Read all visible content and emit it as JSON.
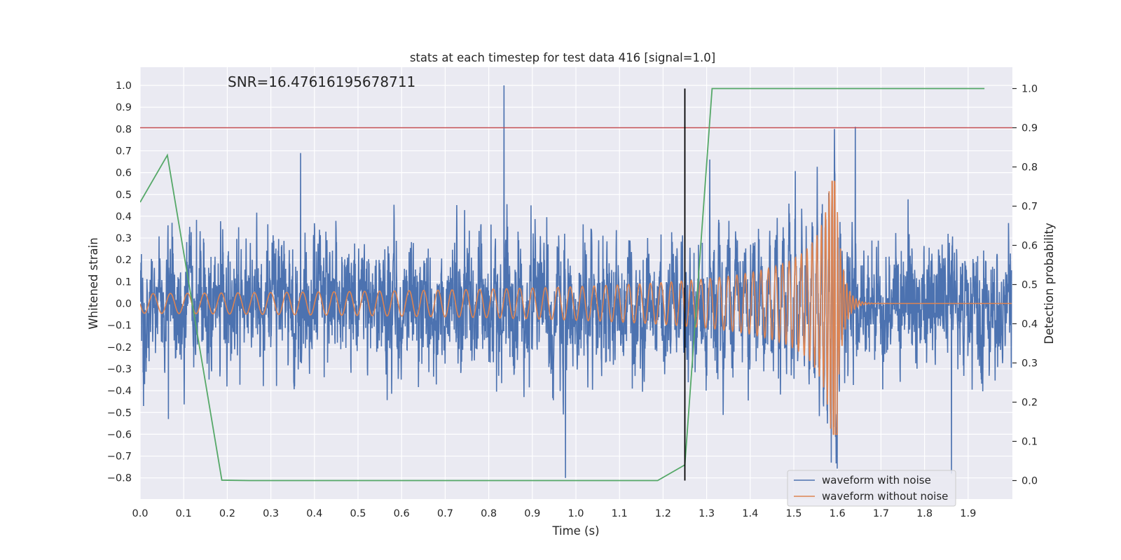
{
  "chart_data": {
    "type": "line",
    "title": "stats at each timestep for test data 416 [signal=1.0]",
    "xlabel": "Time (s)",
    "ylabel": "Whitened strain",
    "y2label": "Detection probability",
    "annotation": "SNR=16.47616195678711",
    "xlim": [
      0.0,
      2.0
    ],
    "ylim": [
      -0.89,
      1.09
    ],
    "y2lim": [
      -0.05,
      1.05
    ],
    "x_ticks": [
      "0.0",
      "0.1",
      "0.2",
      "0.3",
      "0.4",
      "0.5",
      "0.6",
      "0.7",
      "0.8",
      "0.9",
      "1.0",
      "1.1",
      "1.2",
      "1.3",
      "1.4",
      "1.5",
      "1.6",
      "1.7",
      "1.8",
      "1.9"
    ],
    "y_ticks": [
      "1.0",
      "0.9",
      "0.8",
      "0.7",
      "0.6",
      "0.5",
      "0.4",
      "0.3",
      "0.2",
      "0.1",
      "0.0",
      "−0.1",
      "−0.2",
      "−0.3",
      "−0.4",
      "−0.5",
      "−0.6",
      "−0.7",
      "−0.8"
    ],
    "y2_ticks": [
      "1.0",
      "0.9",
      "0.8",
      "0.7",
      "0.6",
      "0.5",
      "0.4",
      "0.3",
      "0.2",
      "0.1",
      "0.0"
    ],
    "threshold_y2": 0.9,
    "event_time": 1.25,
    "noise_series": {
      "name": "waveform with noise",
      "color": "#4c72b0",
      "sample_rate": 2048,
      "duration": 2.0,
      "std": 0.17,
      "clip": [
        -0.8,
        1.0
      ],
      "spikes": [
        [
          0.835,
          1.0
        ],
        [
          0.976,
          -0.8
        ],
        [
          1.641,
          0.81
        ],
        [
          1.862,
          -0.78
        ],
        [
          0.368,
          0.69
        ],
        [
          1.307,
          0.66
        ],
        [
          0.065,
          -0.53
        ],
        [
          1.586,
          -0.73
        ]
      ]
    },
    "clean_series": {
      "name": "waveform without noise",
      "color": "#dd8452",
      "t_merger": 1.6,
      "base_amp": 0.045,
      "f0": 21,
      "peak_amp": 0.56,
      "trough_amp": -0.6
    },
    "probability_series": {
      "name": "Detection probability",
      "color": "#55a868",
      "x": [
        0.0,
        0.0625,
        0.1875,
        0.25,
        0.3125,
        0.375,
        0.4375,
        0.5,
        0.5625,
        0.625,
        0.6875,
        0.75,
        0.8125,
        0.875,
        0.9375,
        1.0,
        1.0625,
        1.125,
        1.1875,
        1.25,
        1.3125,
        1.375,
        1.4375,
        1.5,
        1.5625,
        1.625,
        1.6875,
        1.75,
        1.8125,
        1.875,
        1.9375
      ],
      "y": [
        0.71,
        0.83,
        0.001,
        0.0,
        0.0,
        0.0,
        0.0,
        0.0,
        0.0,
        0.0,
        0.0,
        0.0,
        0.0,
        0.0,
        0.0,
        0.0,
        0.0,
        0.0,
        0.0,
        0.04,
        1.0,
        1.0,
        1.0,
        1.0,
        1.0,
        1.0,
        1.0,
        1.0,
        1.0,
        1.0,
        1.0
      ]
    },
    "threshold_color": "#c44e52",
    "event_line_color": "#000000",
    "legend": {
      "placement": "lower-right",
      "entries": [
        {
          "label": "waveform with noise",
          "color": "#4c72b0"
        },
        {
          "label": "waveform without noise",
          "color": "#dd8452"
        }
      ]
    }
  }
}
